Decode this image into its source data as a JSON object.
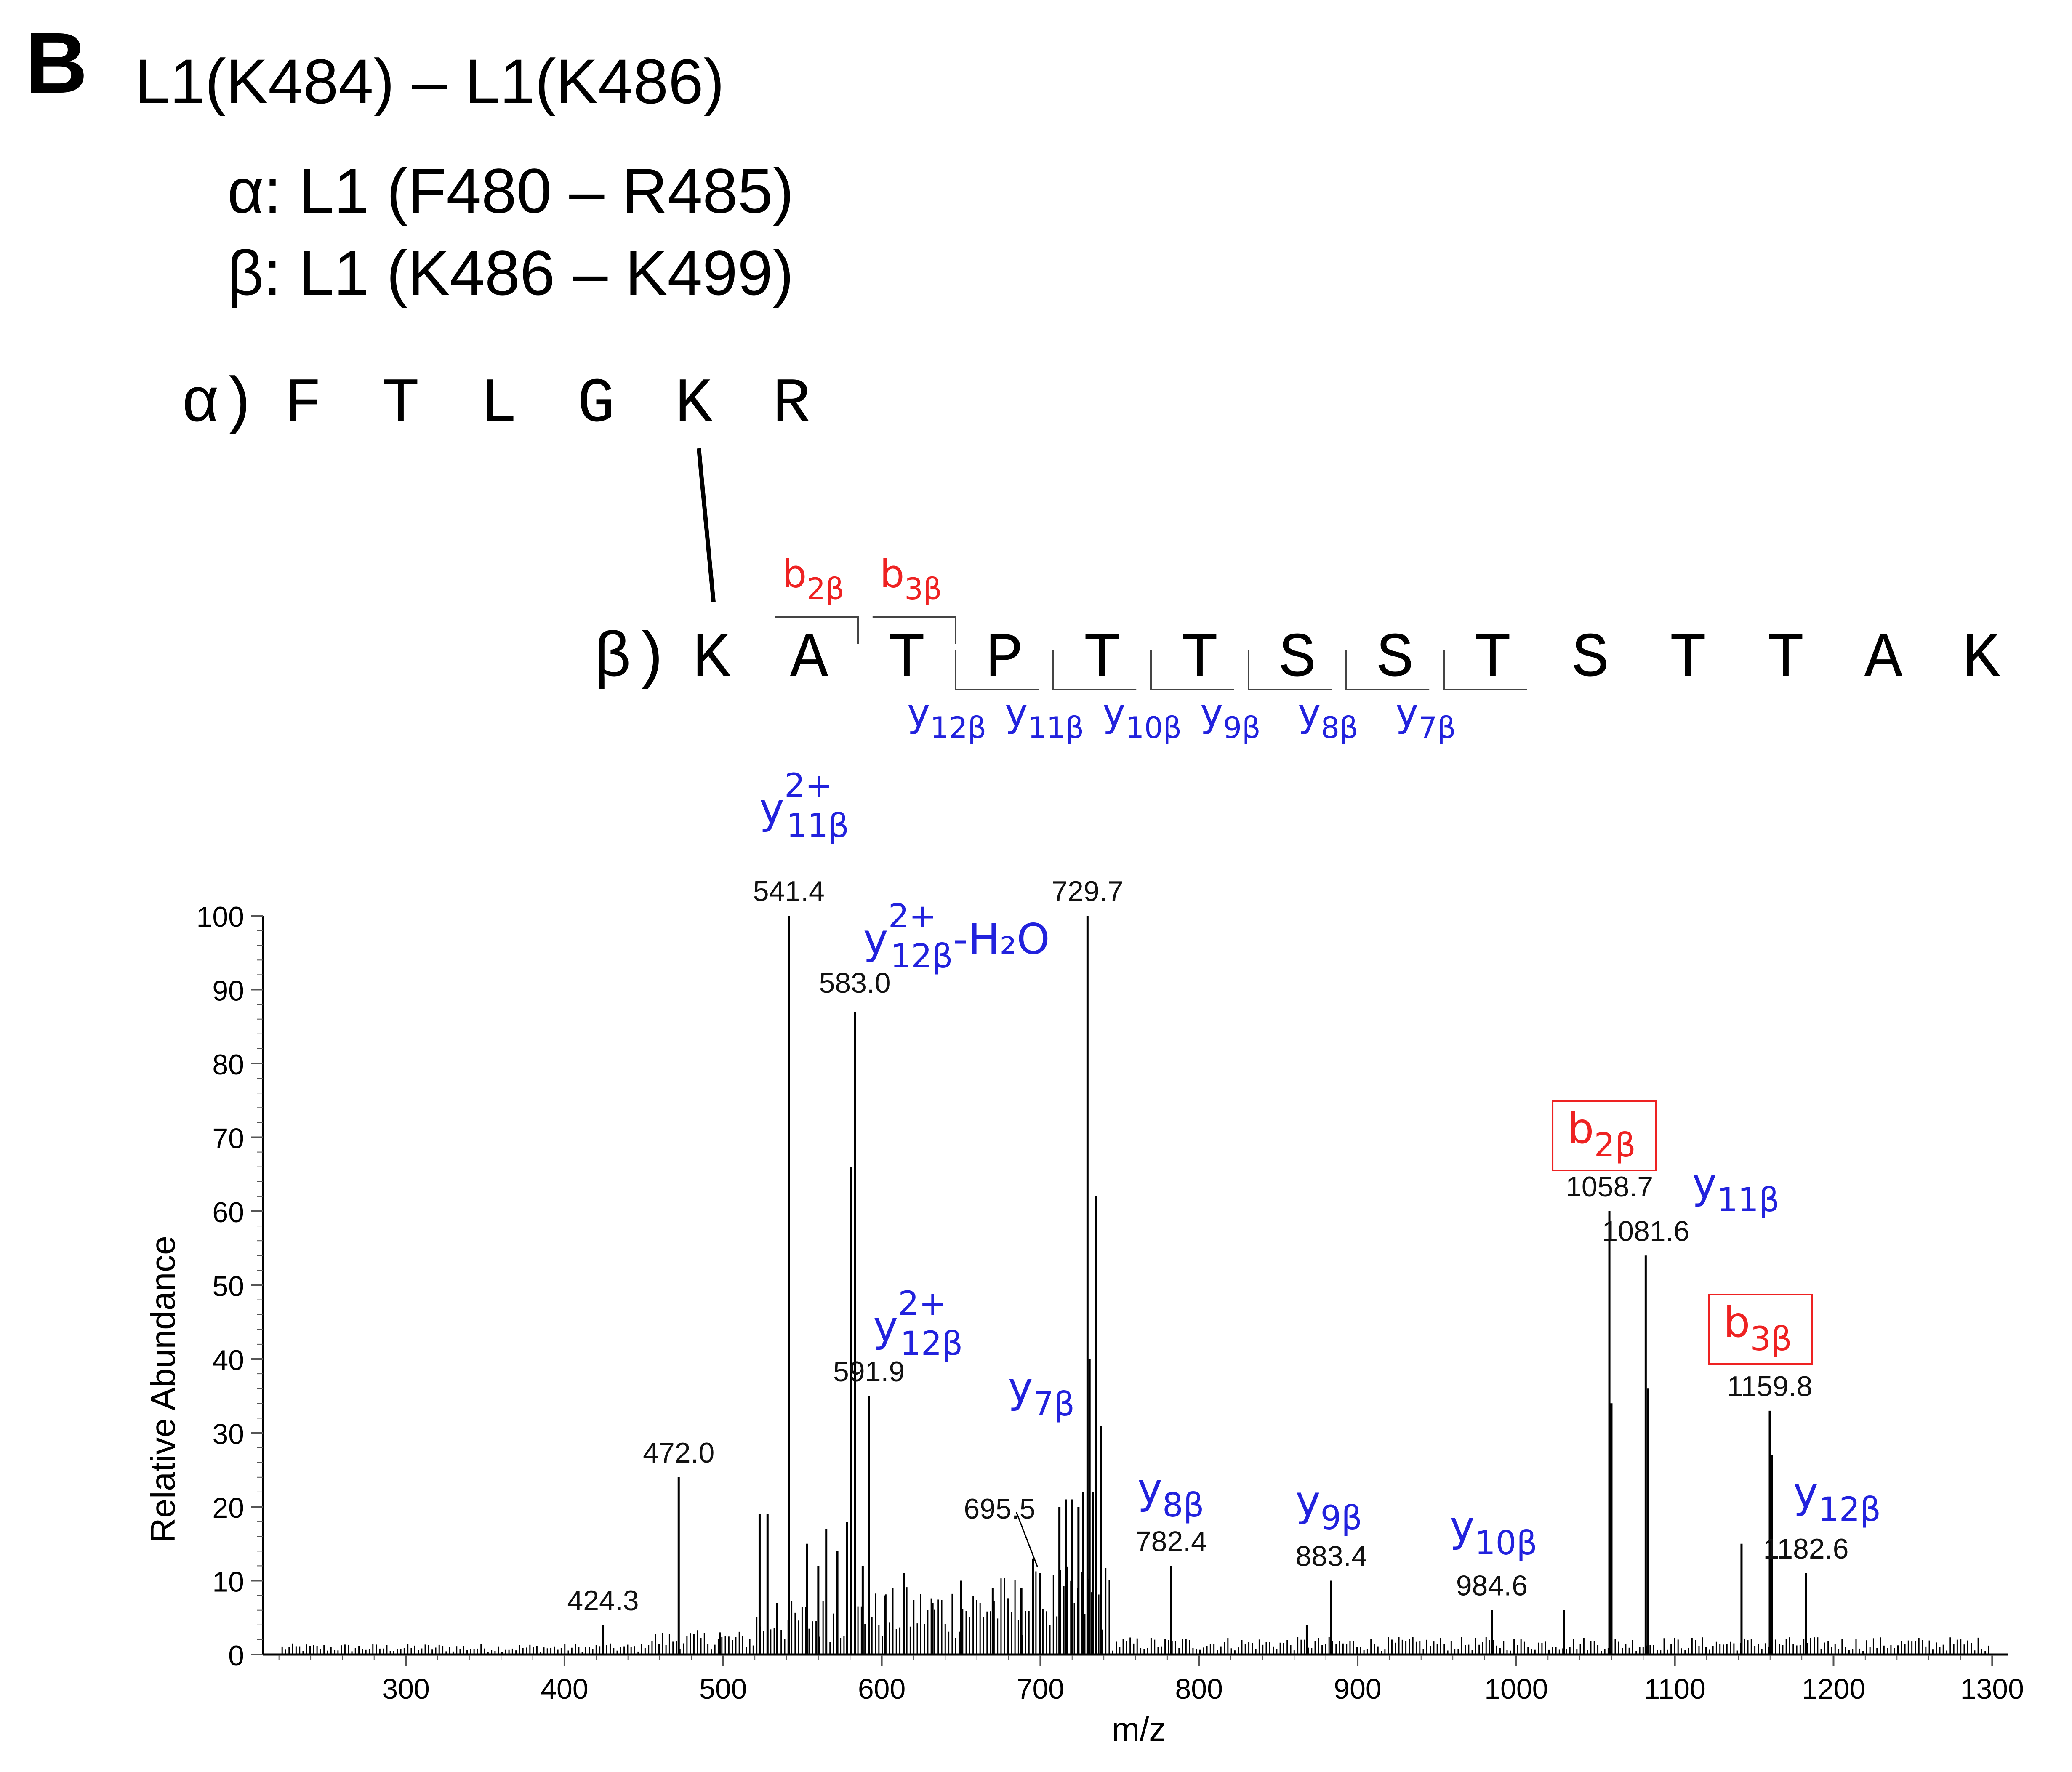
{
  "panel": {
    "letter": "B",
    "title": "L1(K484) – L1(K486)",
    "alpha_line": "α: L1 (F480 – R485)",
    "beta_line": "β: L1 (K486 – K499)"
  },
  "sequences": {
    "alpha_prefix": "α)",
    "alpha": [
      "F",
      "T",
      "L",
      "G",
      "K",
      "R"
    ],
    "beta_prefix": "β)",
    "beta": [
      "K",
      "A",
      "T",
      "P",
      "T",
      "T",
      "S",
      "S",
      "T",
      "S",
      "T",
      "T",
      "A",
      "K"
    ],
    "b_ions": [
      {
        "label": "b",
        "sub": "2β",
        "after_residue": 2
      },
      {
        "label": "b",
        "sub": "3β",
        "after_residue": 3
      }
    ],
    "y_ions": [
      {
        "label": "y",
        "sub": "12β",
        "before_residue": 3
      },
      {
        "label": "y",
        "sub": "11β",
        "before_residue": 4
      },
      {
        "label": "y",
        "sub": "10β",
        "before_residue": 5
      },
      {
        "label": "y",
        "sub": "9β",
        "before_residue": 6
      },
      {
        "label": "y",
        "sub": "8β",
        "before_residue": 7
      },
      {
        "label": "y",
        "sub": "7β",
        "before_residue": 8
      }
    ]
  },
  "colors": {
    "b_ion": "#ee2222",
    "y_ion": "#2222dd",
    "text": "#000000",
    "peak": "#000000"
  },
  "chart_data": {
    "type": "bar",
    "xlabel": "m/z",
    "ylabel": "Relative Abundance",
    "xlim": [
      210,
      1310
    ],
    "ylim": [
      0,
      100
    ],
    "xticks": [
      300,
      400,
      500,
      600,
      700,
      800,
      900,
      1000,
      1100,
      1200,
      1300
    ],
    "yticks": [
      0,
      10,
      20,
      30,
      40,
      50,
      60,
      70,
      80,
      90,
      100
    ],
    "peaks": [
      {
        "mz": 424.3,
        "intensity": 4
      },
      {
        "mz": 472.0,
        "intensity": 24
      },
      {
        "mz": 498.0,
        "intensity": 3
      },
      {
        "mz": 523.0,
        "intensity": 19
      },
      {
        "mz": 528.0,
        "intensity": 19
      },
      {
        "mz": 534.0,
        "intensity": 7
      },
      {
        "mz": 541.4,
        "intensity": 100
      },
      {
        "mz": 553.0,
        "intensity": 15
      },
      {
        "mz": 560.0,
        "intensity": 12
      },
      {
        "mz": 565.0,
        "intensity": 17
      },
      {
        "mz": 572.0,
        "intensity": 14
      },
      {
        "mz": 578.0,
        "intensity": 18
      },
      {
        "mz": 580.5,
        "intensity": 66
      },
      {
        "mz": 583.0,
        "intensity": 87
      },
      {
        "mz": 588.0,
        "intensity": 12
      },
      {
        "mz": 591.9,
        "intensity": 35
      },
      {
        "mz": 602.0,
        "intensity": 8
      },
      {
        "mz": 614.0,
        "intensity": 11
      },
      {
        "mz": 632.0,
        "intensity": 7
      },
      {
        "mz": 650.0,
        "intensity": 10
      },
      {
        "mz": 670.0,
        "intensity": 9
      },
      {
        "mz": 688.0,
        "intensity": 9
      },
      {
        "mz": 695.5,
        "intensity": 13
      },
      {
        "mz": 700.0,
        "intensity": 11
      },
      {
        "mz": 712.0,
        "intensity": 20
      },
      {
        "mz": 716.0,
        "intensity": 21
      },
      {
        "mz": 720.0,
        "intensity": 21
      },
      {
        "mz": 724.0,
        "intensity": 20
      },
      {
        "mz": 727.0,
        "intensity": 22
      },
      {
        "mz": 729.7,
        "intensity": 100
      },
      {
        "mz": 731.0,
        "intensity": 40
      },
      {
        "mz": 733.0,
        "intensity": 22
      },
      {
        "mz": 735.0,
        "intensity": 62
      },
      {
        "mz": 738.0,
        "intensity": 31
      },
      {
        "mz": 782.4,
        "intensity": 12
      },
      {
        "mz": 868.0,
        "intensity": 4
      },
      {
        "mz": 883.4,
        "intensity": 10
      },
      {
        "mz": 984.6,
        "intensity": 6
      },
      {
        "mz": 1030.0,
        "intensity": 6
      },
      {
        "mz": 1058.7,
        "intensity": 60
      },
      {
        "mz": 1060.0,
        "intensity": 34
      },
      {
        "mz": 1081.6,
        "intensity": 54
      },
      {
        "mz": 1083.0,
        "intensity": 36
      },
      {
        "mz": 1142.0,
        "intensity": 15
      },
      {
        "mz": 1159.8,
        "intensity": 33
      },
      {
        "mz": 1161.0,
        "intensity": 27
      },
      {
        "mz": 1182.6,
        "intensity": 11
      }
    ],
    "peak_labels": [
      {
        "mz": 424.3,
        "intensity": 4,
        "text": "424.3"
      },
      {
        "mz": 472.0,
        "intensity": 24,
        "text": "472.0"
      },
      {
        "mz": 541.4,
        "intensity": 100,
        "text": "541.4"
      },
      {
        "mz": 583.0,
        "intensity": 87,
        "text": "583.0"
      },
      {
        "mz": 591.9,
        "intensity": 35,
        "text": "591.9"
      },
      {
        "mz": 695.5,
        "intensity": 13,
        "text": "695.5"
      },
      {
        "mz": 729.7,
        "intensity": 100,
        "text": "729.7"
      },
      {
        "mz": 782.4,
        "intensity": 12,
        "text": "782.4"
      },
      {
        "mz": 883.4,
        "intensity": 10,
        "text": "883.4"
      },
      {
        "mz": 984.6,
        "intensity": 6,
        "text": "984.6"
      },
      {
        "mz": 1058.7,
        "intensity": 60,
        "text": "1058.7"
      },
      {
        "mz": 1081.6,
        "intensity": 54,
        "text": "1081.6"
      },
      {
        "mz": 1159.8,
        "intensity": 33,
        "text": "1159.8"
      },
      {
        "mz": 1182.6,
        "intensity": 11,
        "text": "1182.6"
      }
    ],
    "ion_annotations": [
      {
        "base": "y",
        "sub": "11β",
        "sup": "2+",
        "suffix": "",
        "ion": "y",
        "mz": 541.4
      },
      {
        "base": "y",
        "sub": "12β",
        "sup": "2+",
        "suffix": "-H₂O",
        "ion": "y",
        "mz": 583.0
      },
      {
        "base": "y",
        "sub": "12β",
        "sup": "2+",
        "suffix": "",
        "ion": "y",
        "mz": 591.9
      },
      {
        "base": "y",
        "sub": "7β",
        "sup": "",
        "suffix": "",
        "ion": "y",
        "mz": 695.5
      },
      {
        "base": "y",
        "sub": "8β",
        "sup": "",
        "suffix": "",
        "ion": "y",
        "mz": 782.4
      },
      {
        "base": "y",
        "sub": "9β",
        "sup": "",
        "suffix": "",
        "ion": "y",
        "mz": 883.4
      },
      {
        "base": "y",
        "sub": "10β",
        "sup": "",
        "suffix": "",
        "ion": "y",
        "mz": 984.6
      },
      {
        "base": "b",
        "sub": "2β",
        "sup": "",
        "suffix": "",
        "ion": "b",
        "mz": 1058.7,
        "boxed": true
      },
      {
        "base": "y",
        "sub": "11β",
        "sup": "",
        "suffix": "",
        "ion": "y",
        "mz": 1081.6
      },
      {
        "base": "b",
        "sub": "3β",
        "sup": "",
        "suffix": "",
        "ion": "b",
        "mz": 1159.8,
        "boxed": true
      },
      {
        "base": "y",
        "sub": "12β",
        "sup": "",
        "suffix": "",
        "ion": "y",
        "mz": 1182.6
      }
    ]
  }
}
